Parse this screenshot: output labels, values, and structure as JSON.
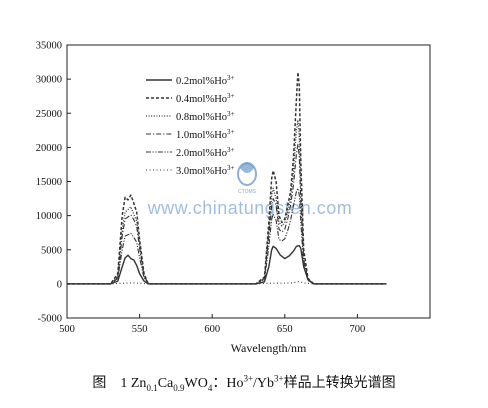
{
  "chart_data": {
    "type": "line",
    "xlabel": "Wavelength/nm",
    "ylabel": "",
    "xlim": [
      500,
      750
    ],
    "ylim": [
      -5000,
      35000
    ],
    "xticks": [
      500,
      550,
      600,
      650,
      700
    ],
    "yticks": [
      -5000,
      0,
      5000,
      10000,
      15000,
      20000,
      25000,
      30000,
      35000
    ],
    "grid": false,
    "legend_position": "top-left",
    "series": [
      {
        "name": "0.2mol%Ho",
        "style": "solid",
        "points": [
          [
            500,
            0
          ],
          [
            530,
            0
          ],
          [
            535,
            400
          ],
          [
            538,
            2500
          ],
          [
            540,
            3800
          ],
          [
            542,
            4200
          ],
          [
            544,
            3700
          ],
          [
            546,
            3500
          ],
          [
            548,
            2700
          ],
          [
            550,
            1500
          ],
          [
            553,
            400
          ],
          [
            556,
            0
          ],
          [
            630,
            0
          ],
          [
            636,
            300
          ],
          [
            639,
            2500
          ],
          [
            641,
            5000
          ],
          [
            642,
            5500
          ],
          [
            644,
            5200
          ],
          [
            647,
            4200
          ],
          [
            650,
            3700
          ],
          [
            653,
            4100
          ],
          [
            656,
            4800
          ],
          [
            658,
            5500
          ],
          [
            660,
            5600
          ],
          [
            661,
            5200
          ],
          [
            663,
            2500
          ],
          [
            666,
            600
          ],
          [
            670,
            0
          ],
          [
            720,
            0
          ]
        ]
      },
      {
        "name": "0.4mol%Ho",
        "style": "dash",
        "points": [
          [
            500,
            0
          ],
          [
            530,
            0
          ],
          [
            535,
            1500
          ],
          [
            538,
            10000
          ],
          [
            540,
            12700
          ],
          [
            542,
            12300
          ],
          [
            544,
            13000
          ],
          [
            546,
            11800
          ],
          [
            548,
            10500
          ],
          [
            550,
            6500
          ],
          [
            553,
            1500
          ],
          [
            556,
            0
          ],
          [
            630,
            0
          ],
          [
            636,
            1000
          ],
          [
            639,
            9000
          ],
          [
            641,
            15500
          ],
          [
            642,
            16600
          ],
          [
            644,
            15000
          ],
          [
            646,
            10000
          ],
          [
            648,
            9000
          ],
          [
            650,
            9500
          ],
          [
            652,
            11500
          ],
          [
            654,
            13500
          ],
          [
            656,
            18500
          ],
          [
            658,
            27000
          ],
          [
            659,
            31000
          ],
          [
            660,
            29000
          ],
          [
            661,
            18000
          ],
          [
            663,
            5000
          ],
          [
            666,
            800
          ],
          [
            670,
            0
          ],
          [
            720,
            0
          ]
        ]
      },
      {
        "name": "0.8mol%Ho",
        "style": "dot",
        "points": [
          [
            500,
            0
          ],
          [
            530,
            0
          ],
          [
            535,
            1200
          ],
          [
            538,
            8000
          ],
          [
            540,
            10500
          ],
          [
            542,
            10900
          ],
          [
            544,
            11300
          ],
          [
            546,
            10200
          ],
          [
            548,
            9200
          ],
          [
            550,
            5800
          ],
          [
            553,
            1300
          ],
          [
            556,
            0
          ],
          [
            630,
            0
          ],
          [
            636,
            900
          ],
          [
            639,
            8000
          ],
          [
            641,
            13000
          ],
          [
            642,
            14000
          ],
          [
            644,
            12500
          ],
          [
            646,
            9000
          ],
          [
            648,
            8500
          ],
          [
            650,
            9000
          ],
          [
            652,
            10500
          ],
          [
            654,
            12500
          ],
          [
            656,
            16500
          ],
          [
            658,
            22500
          ],
          [
            659,
            24000
          ],
          [
            660,
            21500
          ],
          [
            661,
            14000
          ],
          [
            663,
            4000
          ],
          [
            666,
            700
          ],
          [
            670,
            0
          ],
          [
            720,
            0
          ]
        ]
      },
      {
        "name": "1.0mol%Ho",
        "style": "dashdot",
        "points": [
          [
            500,
            0
          ],
          [
            530,
            0
          ],
          [
            535,
            1000
          ],
          [
            538,
            7000
          ],
          [
            540,
            9500
          ],
          [
            542,
            9800
          ],
          [
            544,
            10100
          ],
          [
            546,
            9400
          ],
          [
            548,
            8400
          ],
          [
            550,
            5200
          ],
          [
            553,
            1200
          ],
          [
            556,
            0
          ],
          [
            630,
            0
          ],
          [
            636,
            800
          ],
          [
            639,
            7000
          ],
          [
            641,
            11500
          ],
          [
            642,
            12500
          ],
          [
            644,
            11500
          ],
          [
            646,
            8000
          ],
          [
            648,
            7600
          ],
          [
            650,
            8000
          ],
          [
            652,
            9500
          ],
          [
            654,
            11500
          ],
          [
            656,
            14500
          ],
          [
            658,
            19000
          ],
          [
            659,
            20500
          ],
          [
            660,
            18500
          ],
          [
            661,
            12000
          ],
          [
            663,
            3500
          ],
          [
            666,
            600
          ],
          [
            670,
            0
          ],
          [
            720,
            0
          ]
        ]
      },
      {
        "name": "2.0mol%Ho",
        "style": "dashdotdot",
        "points": [
          [
            500,
            0
          ],
          [
            530,
            0
          ],
          [
            535,
            800
          ],
          [
            538,
            5000
          ],
          [
            540,
            7000
          ],
          [
            542,
            7200
          ],
          [
            544,
            7400
          ],
          [
            546,
            6800
          ],
          [
            548,
            6100
          ],
          [
            550,
            3800
          ],
          [
            553,
            900
          ],
          [
            556,
            0
          ],
          [
            630,
            0
          ],
          [
            636,
            600
          ],
          [
            639,
            5500
          ],
          [
            641,
            9500
          ],
          [
            642,
            10200
          ],
          [
            644,
            9300
          ],
          [
            646,
            6500
          ],
          [
            648,
            6300
          ],
          [
            650,
            6600
          ],
          [
            652,
            7800
          ],
          [
            654,
            9300
          ],
          [
            656,
            11500
          ],
          [
            658,
            13500
          ],
          [
            659,
            14000
          ],
          [
            660,
            13000
          ],
          [
            661,
            9000
          ],
          [
            663,
            2800
          ],
          [
            666,
            500
          ],
          [
            670,
            0
          ],
          [
            720,
            0
          ]
        ]
      },
      {
        "name": "3.0mol%Ho",
        "style": "shortdot",
        "points": [
          [
            500,
            0
          ],
          [
            530,
            0
          ],
          [
            535,
            50
          ],
          [
            540,
            120
          ],
          [
            545,
            150
          ],
          [
            550,
            100
          ],
          [
            556,
            0
          ],
          [
            630,
            0
          ],
          [
            640,
            100
          ],
          [
            650,
            120
          ],
          [
            655,
            150
          ],
          [
            660,
            350
          ],
          [
            663,
            150
          ],
          [
            670,
            0
          ],
          [
            720,
            0
          ]
        ]
      }
    ]
  },
  "legend": {
    "entries": [
      {
        "label": "0.2mol%Ho",
        "sup": "3+"
      },
      {
        "label": "0.4mol%Ho",
        "sup": "3+"
      },
      {
        "label": "0.8mol%Ho",
        "sup": "3+"
      },
      {
        "label": "1.0mol%Ho",
        "sup": "3+"
      },
      {
        "label": "2.0mol%Ho",
        "sup": "3+"
      },
      {
        "label": "3.0mol%Ho",
        "sup": "3+"
      }
    ]
  },
  "watermark": {
    "url": "www.chinatungsten.com",
    "logo_text": "CTOMS",
    "color": "#2f6fb8"
  },
  "caption": {
    "prefix": "图",
    "number": "1",
    "formula": {
      "p1": "Zn",
      "s1": "0.1",
      "p2": "Ca",
      "s2": "0.9",
      "p3": "WO",
      "s3": "4"
    },
    "colon": "：",
    "ion1": "Ho",
    "ion1_sup": "3+",
    "slash": "/",
    "ion2": "Yb",
    "ion2_sup": "3+",
    "text": "样品上转换光谱图"
  }
}
